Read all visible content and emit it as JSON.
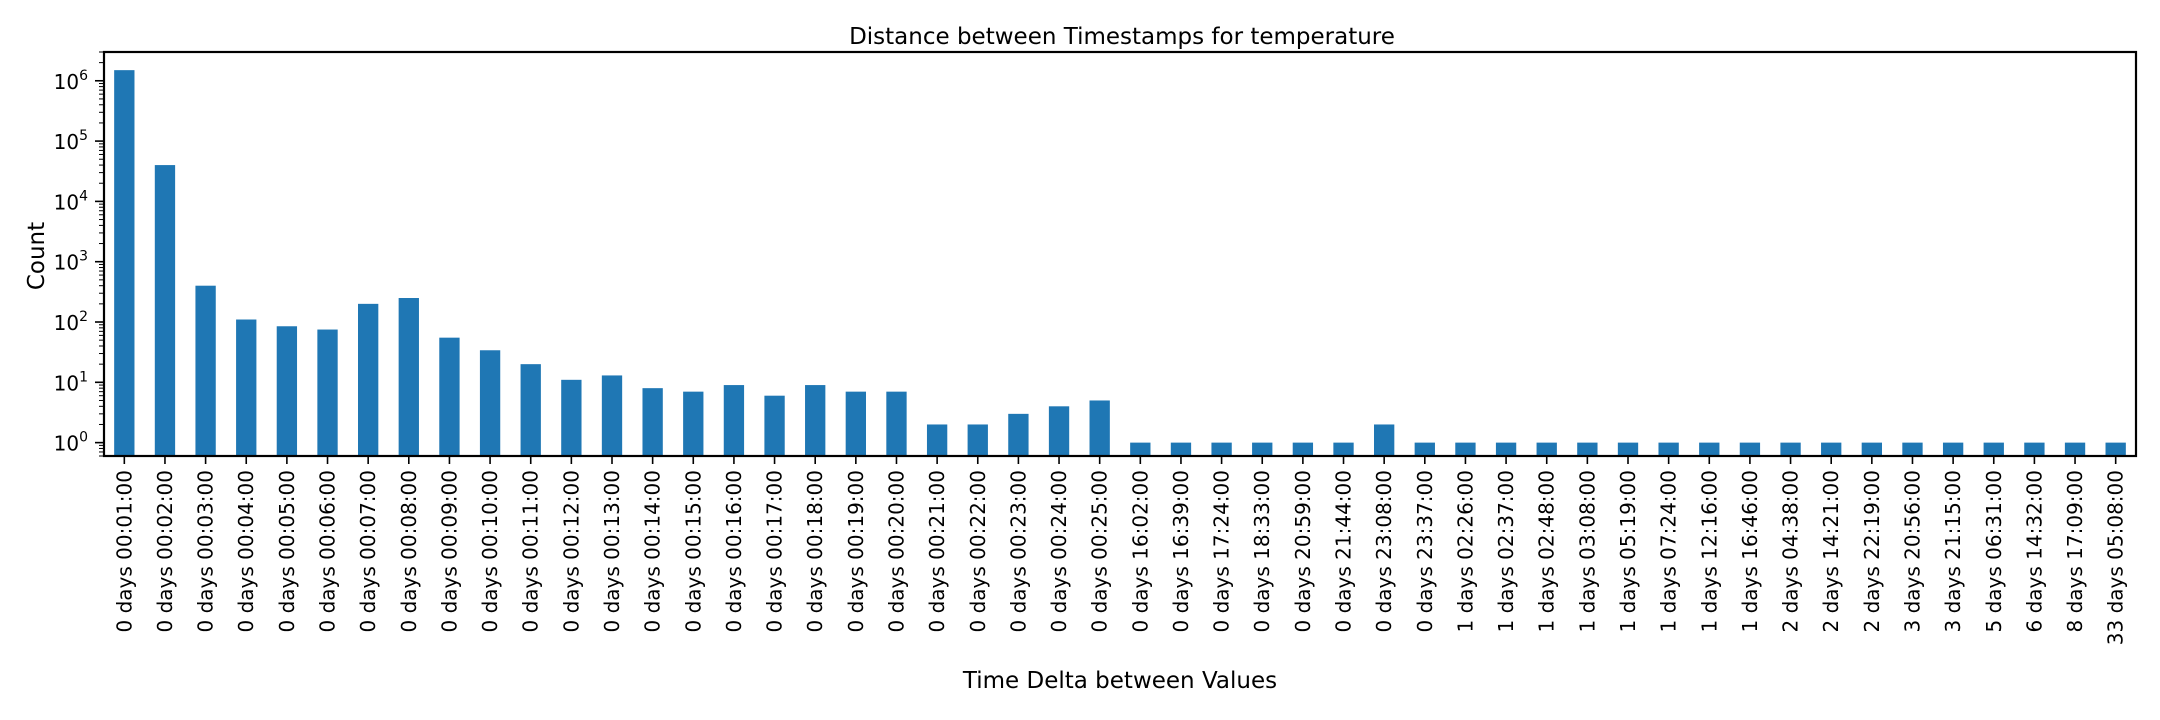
{
  "chart_data": {
    "type": "bar",
    "title": "Distance between Timestamps for temperature",
    "xlabel": "Time Delta between Values",
    "ylabel": "Count",
    "yscale": "log",
    "ylim": [
      0.6,
      3000000
    ],
    "y_tick_labels": [
      {
        "base": "10",
        "exp": "0"
      },
      {
        "base": "10",
        "exp": "1"
      },
      {
        "base": "10",
        "exp": "2"
      },
      {
        "base": "10",
        "exp": "3"
      },
      {
        "base": "10",
        "exp": "4"
      },
      {
        "base": "10",
        "exp": "5"
      },
      {
        "base": "10",
        "exp": "6"
      }
    ],
    "grid": false,
    "bar_color": "#1f77b4",
    "categories": [
      "0 days 00:01:00",
      "0 days 00:02:00",
      "0 days 00:03:00",
      "0 days 00:04:00",
      "0 days 00:05:00",
      "0 days 00:06:00",
      "0 days 00:07:00",
      "0 days 00:08:00",
      "0 days 00:09:00",
      "0 days 00:10:00",
      "0 days 00:11:00",
      "0 days 00:12:00",
      "0 days 00:13:00",
      "0 days 00:14:00",
      "0 days 00:15:00",
      "0 days 00:16:00",
      "0 days 00:17:00",
      "0 days 00:18:00",
      "0 days 00:19:00",
      "0 days 00:20:00",
      "0 days 00:21:00",
      "0 days 00:22:00",
      "0 days 00:23:00",
      "0 days 00:24:00",
      "0 days 00:25:00",
      "0 days 16:02:00",
      "0 days 16:39:00",
      "0 days 17:24:00",
      "0 days 18:33:00",
      "0 days 20:59:00",
      "0 days 21:44:00",
      "0 days 23:08:00",
      "0 days 23:37:00",
      "1 days 02:26:00",
      "1 days 02:37:00",
      "1 days 02:48:00",
      "1 days 03:08:00",
      "1 days 05:19:00",
      "1 days 07:24:00",
      "1 days 12:16:00",
      "1 days 16:46:00",
      "2 days 04:38:00",
      "2 days 14:21:00",
      "2 days 22:19:00",
      "3 days 20:56:00",
      "3 days 21:15:00",
      "5 days 06:31:00",
      "6 days 14:32:00",
      "8 days 17:09:00",
      "33 days 05:08:00"
    ],
    "values": [
      1500000,
      40000,
      400,
      110,
      85,
      75,
      200,
      250,
      55,
      34,
      20,
      11,
      13,
      8,
      7,
      9,
      6,
      9,
      7,
      7,
      2,
      2,
      3,
      4,
      5,
      1,
      1,
      1,
      1,
      1,
      1,
      2,
      1,
      1,
      1,
      1,
      1,
      1,
      1,
      1,
      1,
      1,
      1,
      1,
      1,
      1,
      1,
      1,
      1,
      1
    ]
  }
}
